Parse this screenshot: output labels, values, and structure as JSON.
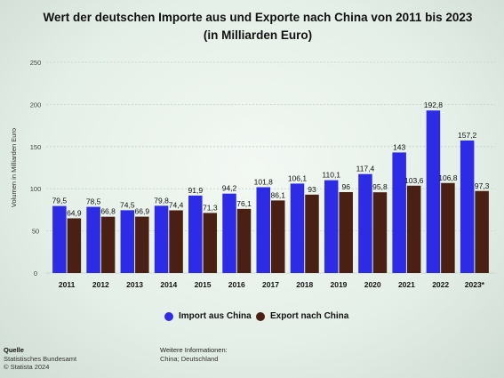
{
  "chart_data": {
    "type": "bar",
    "title": "Wert der deutschen Importe aus und Exporte nach China von 2011 bis 2023 (in Milliarden Euro)",
    "ylabel": "Volumen in Milliarden Euro",
    "xlabel": "",
    "ylim": [
      0,
      250
    ],
    "yticks": [
      0,
      50,
      100,
      150,
      200,
      250
    ],
    "grid": true,
    "legend_position": "bottom",
    "categories": [
      "2011",
      "2012",
      "2013",
      "2014",
      "2015",
      "2016",
      "2017",
      "2018",
      "2019",
      "2020",
      "2021",
      "2022",
      "2023*"
    ],
    "series": [
      {
        "name": "Import aus China",
        "color": "#2d2be6",
        "values": [
          79.5,
          78.5,
          74.5,
          79.8,
          91.9,
          94.2,
          101.8,
          106.1,
          110.1,
          117.4,
          143,
          192.8,
          157.2
        ],
        "labels": [
          "79,5",
          "78,5",
          "74,5",
          "79,8",
          "91,9",
          "94,2",
          "101,8",
          "106,1",
          "110,1",
          "117,4",
          "143",
          "192,8",
          "157,2"
        ]
      },
      {
        "name": "Export nach China",
        "color": "#4a1f14",
        "values": [
          64.9,
          66.8,
          66.9,
          74.4,
          71.3,
          76.1,
          86.1,
          93,
          96,
          95.8,
          103.6,
          106.8,
          97.3
        ],
        "labels": [
          "64,9",
          "66,8",
          "66,9",
          "74,4",
          "71,3",
          "76,1",
          "86,1",
          "93",
          "96",
          "95,8",
          "103,6",
          "106,8",
          "97,3"
        ]
      }
    ]
  },
  "footer": {
    "source_heading": "Quelle",
    "source_name": "Statistisches Bundesamt",
    "copyright": "© Statista 2024",
    "info_heading": "Weitere Informationen:",
    "info_text": "China; Deutschland"
  }
}
